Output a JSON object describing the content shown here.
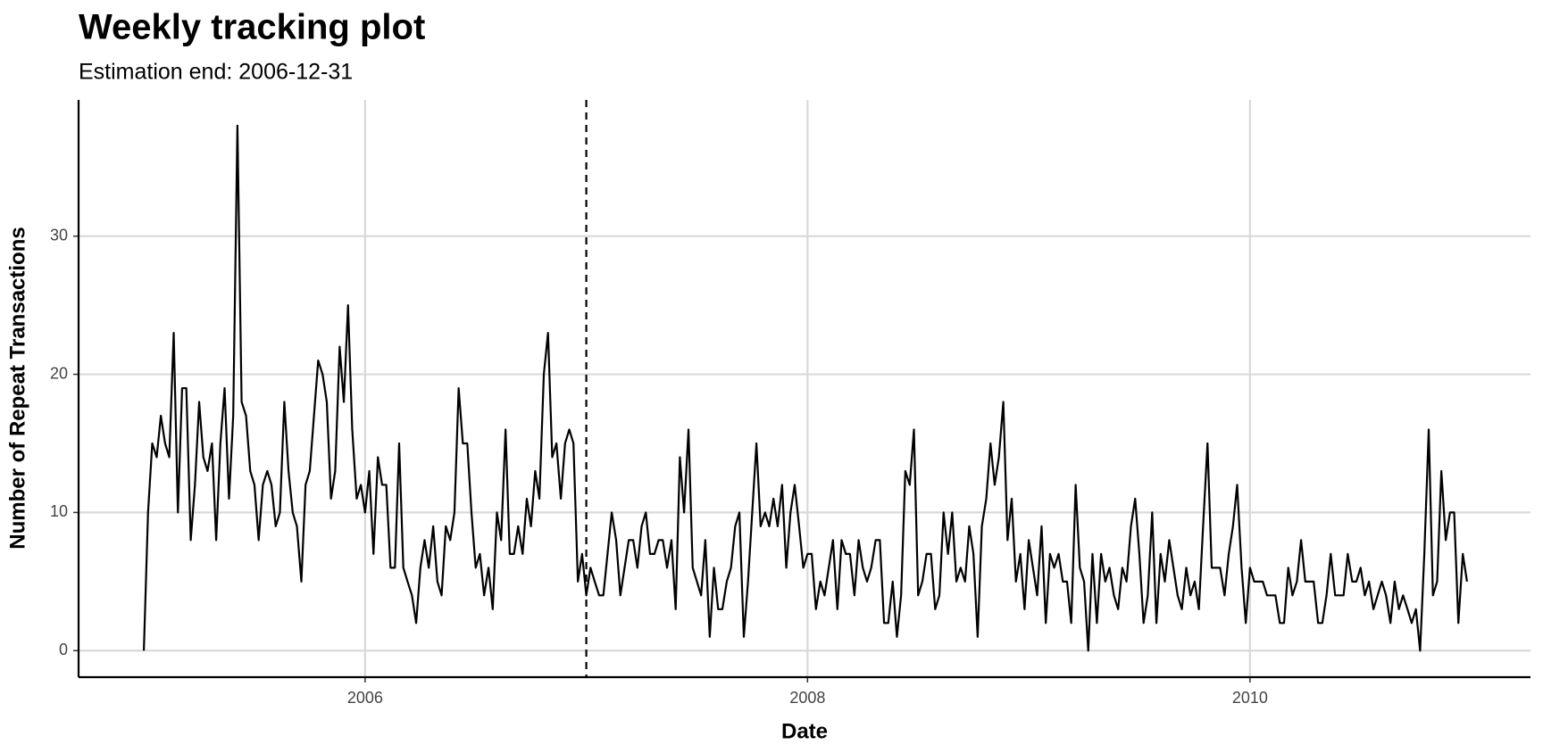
{
  "chart_data": {
    "type": "line",
    "title": "Weekly tracking plot",
    "subtitle": "Estimation end: 2006-12-31",
    "x_label": "Date",
    "y_label": "Number of Repeat Transactions",
    "color": "#000000",
    "grid": true,
    "xlim": [
      2004.705,
      2011.268
    ],
    "ylim": [
      -1.92,
      39.86
    ],
    "xticks": [
      2006,
      2008,
      2010
    ],
    "yticks": [
      0,
      10,
      20,
      30
    ],
    "vline": 2007,
    "x": [
      2005,
      2005.019,
      2005.038,
      2005.058,
      2005.077,
      2005.096,
      2005.115,
      2005.135,
      2005.154,
      2005.173,
      2005.192,
      2005.212,
      2005.231,
      2005.25,
      2005.269,
      2005.288,
      2005.308,
      2005.327,
      2005.346,
      2005.365,
      2005.385,
      2005.404,
      2005.423,
      2005.442,
      2005.462,
      2005.481,
      2005.5,
      2005.519,
      2005.538,
      2005.558,
      2005.577,
      2005.596,
      2005.615,
      2005.635,
      2005.654,
      2005.673,
      2005.692,
      2005.712,
      2005.731,
      2005.75,
      2005.769,
      2005.788,
      2005.808,
      2005.827,
      2005.846,
      2005.865,
      2005.885,
      2005.904,
      2005.923,
      2005.942,
      2005.962,
      2005.981,
      2006,
      2006.019,
      2006.038,
      2006.058,
      2006.077,
      2006.096,
      2006.115,
      2006.135,
      2006.154,
      2006.173,
      2006.192,
      2006.212,
      2006.231,
      2006.25,
      2006.269,
      2006.288,
      2006.308,
      2006.327,
      2006.346,
      2006.365,
      2006.385,
      2006.404,
      2006.423,
      2006.442,
      2006.462,
      2006.481,
      2006.5,
      2006.519,
      2006.538,
      2006.558,
      2006.577,
      2006.596,
      2006.615,
      2006.635,
      2006.654,
      2006.673,
      2006.692,
      2006.712,
      2006.731,
      2006.75,
      2006.769,
      2006.788,
      2006.808,
      2006.827,
      2006.846,
      2006.865,
      2006.885,
      2006.904,
      2006.923,
      2006.942,
      2006.962,
      2006.981,
      2007,
      2007.019,
      2007.038,
      2007.058,
      2007.077,
      2007.096,
      2007.115,
      2007.135,
      2007.154,
      2007.173,
      2007.192,
      2007.212,
      2007.231,
      2007.25,
      2007.269,
      2007.288,
      2007.308,
      2007.327,
      2007.346,
      2007.365,
      2007.385,
      2007.404,
      2007.423,
      2007.442,
      2007.462,
      2007.481,
      2007.5,
      2007.519,
      2007.538,
      2007.558,
      2007.577,
      2007.596,
      2007.615,
      2007.635,
      2007.654,
      2007.673,
      2007.692,
      2007.712,
      2007.731,
      2007.75,
      2007.769,
      2007.788,
      2007.808,
      2007.827,
      2007.846,
      2007.865,
      2007.885,
      2007.904,
      2007.923,
      2007.942,
      2007.962,
      2007.981,
      2008,
      2008.019,
      2008.038,
      2008.058,
      2008.077,
      2008.096,
      2008.115,
      2008.135,
      2008.154,
      2008.173,
      2008.192,
      2008.212,
      2008.231,
      2008.25,
      2008.269,
      2008.288,
      2008.308,
      2008.327,
      2008.346,
      2008.365,
      2008.385,
      2008.404,
      2008.423,
      2008.442,
      2008.462,
      2008.481,
      2008.5,
      2008.519,
      2008.538,
      2008.558,
      2008.577,
      2008.596,
      2008.615,
      2008.635,
      2008.654,
      2008.673,
      2008.692,
      2008.712,
      2008.731,
      2008.75,
      2008.769,
      2008.788,
      2008.808,
      2008.827,
      2008.846,
      2008.865,
      2008.885,
      2008.904,
      2008.923,
      2008.942,
      2008.962,
      2008.981,
      2009,
      2009.019,
      2009.038,
      2009.058,
      2009.077,
      2009.096,
      2009.115,
      2009.135,
      2009.154,
      2009.173,
      2009.192,
      2009.212,
      2009.231,
      2009.25,
      2009.269,
      2009.288,
      2009.308,
      2009.327,
      2009.346,
      2009.365,
      2009.385,
      2009.404,
      2009.423,
      2009.442,
      2009.462,
      2009.481,
      2009.5,
      2009.519,
      2009.538,
      2009.558,
      2009.577,
      2009.596,
      2009.615,
      2009.635,
      2009.654,
      2009.673,
      2009.692,
      2009.712,
      2009.731,
      2009.75,
      2009.769,
      2009.788,
      2009.808,
      2009.827,
      2009.846,
      2009.865,
      2009.885,
      2009.904,
      2009.923,
      2009.942,
      2009.962,
      2009.981,
      2010,
      2010.019,
      2010.038,
      2010.058,
      2010.077,
      2010.096,
      2010.115,
      2010.135,
      2010.154,
      2010.173,
      2010.192,
      2010.212,
      2010.231,
      2010.25,
      2010.269,
      2010.288,
      2010.308,
      2010.327,
      2010.346,
      2010.365,
      2010.385,
      2010.404,
      2010.423,
      2010.442,
      2010.462,
      2010.481,
      2010.5,
      2010.519,
      2010.538,
      2010.558,
      2010.577,
      2010.596,
      2010.615,
      2010.635,
      2010.654,
      2010.673,
      2010.692,
      2010.712,
      2010.731,
      2010.75,
      2010.769,
      2010.788,
      2010.808,
      2010.827,
      2010.846,
      2010.865,
      2010.885,
      2010.904,
      2010.923,
      2010.942,
      2010.962,
      2010.981
    ],
    "values": [
      0,
      10,
      15,
      14,
      17,
      15,
      14,
      23,
      10,
      19,
      19,
      8,
      12,
      18,
      14,
      13,
      15,
      8,
      15,
      19,
      11,
      17,
      38,
      18,
      17,
      13,
      12,
      8,
      12,
      13,
      12,
      9,
      10,
      18,
      13,
      10,
      9,
      5,
      12,
      13,
      17,
      21,
      20,
      18,
      11,
      13,
      22,
      18,
      25,
      16,
      11,
      12,
      10,
      13,
      7,
      14,
      12,
      12,
      6,
      6,
      15,
      6,
      5,
      4,
      2,
      6,
      8,
      6,
      9,
      5,
      4,
      9,
      8,
      10,
      19,
      15,
      15,
      10,
      6,
      7,
      4,
      6,
      3,
      10,
      8,
      16,
      7,
      7,
      9,
      7,
      11,
      9,
      13,
      11,
      20,
      23,
      14,
      15,
      11,
      15,
      16,
      15,
      5,
      7,
      4,
      6,
      5,
      4,
      4,
      7,
      10,
      8,
      4,
      6,
      8,
      8,
      6,
      9,
      10,
      7,
      7,
      8,
      8,
      6,
      8,
      3,
      14,
      10,
      16,
      6,
      5,
      4,
      8,
      1,
      6,
      3,
      3,
      5,
      6,
      9,
      10,
      1,
      5,
      10,
      15,
      9,
      10,
      9,
      11,
      9,
      12,
      6,
      10,
      12,
      9,
      6,
      7,
      7,
      3,
      5,
      4,
      6,
      8,
      3,
      8,
      7,
      7,
      4,
      8,
      6,
      5,
      6,
      8,
      8,
      2,
      2,
      5,
      1,
      4,
      13,
      12,
      16,
      4,
      5,
      7,
      7,
      3,
      4,
      10,
      7,
      10,
      5,
      6,
      5,
      9,
      7,
      1,
      9,
      11,
      15,
      12,
      14,
      18,
      8,
      11,
      5,
      7,
      3,
      8,
      6,
      4,
      9,
      2,
      7,
      6,
      7,
      5,
      5,
      2,
      12,
      6,
      5,
      0,
      7,
      2,
      7,
      5,
      6,
      4,
      3,
      6,
      5,
      9,
      11,
      7,
      2,
      4,
      10,
      2,
      7,
      5,
      8,
      6,
      4,
      3,
      6,
      4,
      5,
      3,
      9,
      15,
      6,
      6,
      6,
      4,
      7,
      9,
      12,
      6,
      2,
      6,
      5,
      5,
      5,
      4,
      4,
      4,
      2,
      2,
      6,
      4,
      5,
      8,
      5,
      5,
      5,
      2,
      2,
      4,
      7,
      4,
      4,
      4,
      7,
      5,
      5,
      6,
      4,
      5,
      3,
      4,
      5,
      4,
      2,
      5,
      3,
      4,
      3,
      2,
      3,
      0,
      7,
      16,
      4,
      5,
      13,
      8,
      10,
      10,
      2,
      7,
      5
    ]
  }
}
